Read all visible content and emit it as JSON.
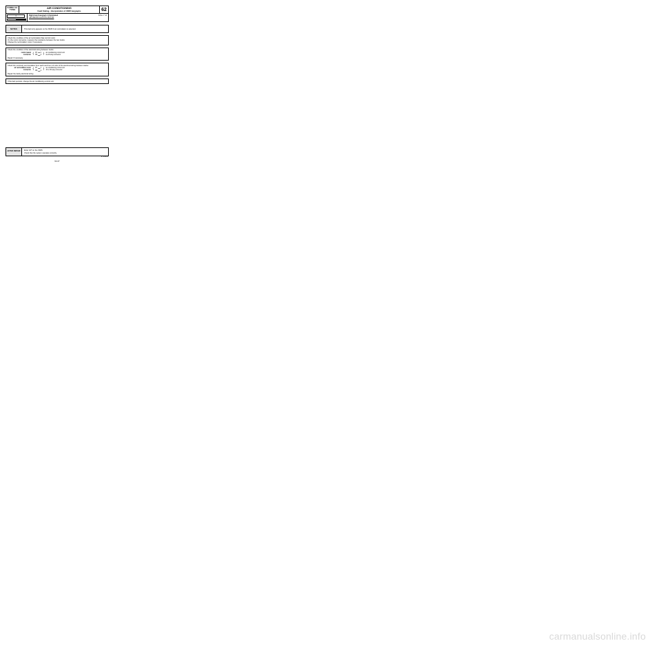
{
  "header": {
    "left": "CA/REG\nALL TYPES",
    "title": "AIR CONDITIONING",
    "subtitle": "Fault finding - Interpretation of XR25 bargraphs",
    "num": "62"
  },
  "row2": {
    "bg_num": "4",
    "main": "Right-hand  bargraph  4  illuminated",
    "sub": "AIR RECIRCULATION MOTOR",
    "fiche": "Fiche n° 14"
  },
  "notes": {
    "label": "NOTES",
    "text": "This fault only appears on the XR25 if air recirculation is selected."
  },
  "step1": {
    "l1": "Check the condition of the air recirculation flap control motor.",
    "l2": "On the motor connector, measure the resistance between the two tracks.",
    "l3": "Change the recirculation motor if necessary."
  },
  "step2": {
    "l1": "Check the condition of the electrical wiring between tracks:",
    "wl": "control panel connector",
    "w1a": "B7",
    "w1b": "1",
    "w2a": "B8",
    "w2b": "2",
    "wr": "air conditioning control unit via 15-way connector",
    "l2": "Repair if necessary."
  },
  "step3": {
    "l1": "Check the continuity and insulation from earth and from 12 volts of the electrical wiring between tracks:",
    "wl": "air recirculation motor connector",
    "w1a": "B7",
    "w1b": "1",
    "w2a": "B8",
    "w2b": "2",
    "wr": "air conditioning control unit 15 or 30-way connector",
    "l2": "Repair the faulty electrical wiring."
  },
  "step4": {
    "l1": "If the fault persists, change the air conditioning control unit."
  },
  "after": {
    "label": "AFTER REPAIR",
    "l1": "Enter G0* on the XR25.",
    "l2": "Check that the system operates correctly."
  },
  "ref": "ETUDES1",
  "pagenum": "62-27",
  "watermark": "carmanualsonline.info"
}
